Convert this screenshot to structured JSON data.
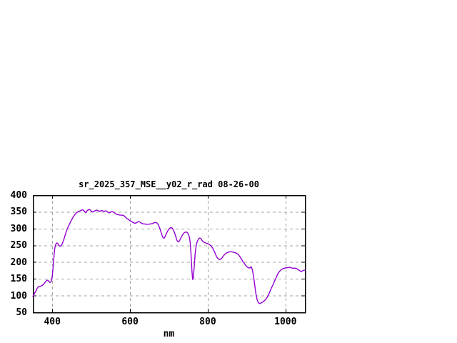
{
  "window": {
    "background": "#ffffff"
  },
  "chart_data": {
    "type": "line",
    "title": "sr_2025_357_MSE__y02_r_rad 08-26-00",
    "xlabel": "nm",
    "ylabel": "",
    "xlim": [
      350,
      1050
    ],
    "ylim": [
      50,
      400
    ],
    "x_ticks": [
      400,
      600,
      800,
      1000
    ],
    "y_ticks": [
      50,
      100,
      150,
      200,
      250,
      300,
      350,
      400
    ],
    "grid": true,
    "legend": false,
    "colors": {
      "line": "#9400d3",
      "grid": "#a0a0a0",
      "border": "#000000",
      "text": "#000000",
      "background": "#ffffff"
    },
    "series": [
      {
        "name": "sr_2025_357_MSE__y02_r_rad",
        "color": "#9400d3",
        "points": [
          [
            350,
            98
          ],
          [
            352,
            101
          ],
          [
            354,
            106
          ],
          [
            356,
            110
          ],
          [
            358,
            114
          ],
          [
            360,
            119
          ],
          [
            362,
            123
          ],
          [
            364,
            126
          ],
          [
            366,
            127
          ],
          [
            368,
            127
          ],
          [
            370,
            128
          ],
          [
            372,
            129
          ],
          [
            374,
            130
          ],
          [
            376,
            132
          ],
          [
            378,
            134
          ],
          [
            380,
            137
          ],
          [
            382,
            140
          ],
          [
            384,
            143
          ],
          [
            386,
            145
          ],
          [
            388,
            146
          ],
          [
            390,
            144
          ],
          [
            392,
            141
          ],
          [
            394,
            139
          ],
          [
            396,
            140
          ],
          [
            398,
            145
          ],
          [
            400,
            158
          ],
          [
            402,
            182
          ],
          [
            404,
            212
          ],
          [
            406,
            238
          ],
          [
            408,
            250
          ],
          [
            410,
            255
          ],
          [
            412,
            257
          ],
          [
            414,
            256
          ],
          [
            416,
            252
          ],
          [
            418,
            249
          ],
          [
            420,
            247
          ],
          [
            422,
            248
          ],
          [
            424,
            251
          ],
          [
            426,
            256
          ],
          [
            428,
            262
          ],
          [
            430,
            268
          ],
          [
            433,
            280
          ],
          [
            436,
            291
          ],
          [
            439,
            300
          ],
          [
            442,
            308
          ],
          [
            445,
            315
          ],
          [
            448,
            322
          ],
          [
            451,
            329
          ],
          [
            454,
            335
          ],
          [
            457,
            340
          ],
          [
            460,
            344
          ],
          [
            463,
            348
          ],
          [
            466,
            350
          ],
          [
            469,
            352
          ],
          [
            472,
            353
          ],
          [
            475,
            355
          ],
          [
            478,
            356
          ],
          [
            481,
            354
          ],
          [
            484,
            350
          ],
          [
            486,
            347
          ],
          [
            488,
            350
          ],
          [
            490,
            354
          ],
          [
            493,
            356
          ],
          [
            496,
            357
          ],
          [
            499,
            354
          ],
          [
            502,
            350
          ],
          [
            505,
            350
          ],
          [
            508,
            352
          ],
          [
            511,
            354
          ],
          [
            514,
            355
          ],
          [
            517,
            354
          ],
          [
            520,
            352
          ],
          [
            523,
            352
          ],
          [
            526,
            354
          ],
          [
            529,
            353
          ],
          [
            532,
            352
          ],
          [
            535,
            352
          ],
          [
            538,
            353
          ],
          [
            541,
            351
          ],
          [
            544,
            348
          ],
          [
            547,
            347
          ],
          [
            550,
            349
          ],
          [
            553,
            351
          ],
          [
            556,
            350
          ],
          [
            559,
            348
          ],
          [
            562,
            345
          ],
          [
            565,
            343
          ],
          [
            568,
            342
          ],
          [
            571,
            341
          ],
          [
            574,
            340
          ],
          [
            577,
            340
          ],
          [
            580,
            340
          ],
          [
            583,
            339
          ],
          [
            586,
            337
          ],
          [
            589,
            333
          ],
          [
            592,
            330
          ],
          [
            595,
            328
          ],
          [
            598,
            325
          ],
          [
            601,
            323
          ],
          [
            604,
            321
          ],
          [
            607,
            319
          ],
          [
            610,
            317
          ],
          [
            613,
            316
          ],
          [
            616,
            317
          ],
          [
            619,
            319
          ],
          [
            622,
            321
          ],
          [
            625,
            320
          ],
          [
            628,
            317
          ],
          [
            631,
            315
          ],
          [
            634,
            314
          ],
          [
            637,
            314
          ],
          [
            640,
            313
          ],
          [
            643,
            313
          ],
          [
            646,
            313
          ],
          [
            649,
            313
          ],
          [
            652,
            314
          ],
          [
            655,
            314
          ],
          [
            658,
            315
          ],
          [
            661,
            317
          ],
          [
            664,
            318
          ],
          [
            667,
            318
          ],
          [
            670,
            316
          ],
          [
            673,
            311
          ],
          [
            676,
            303
          ],
          [
            679,
            292
          ],
          [
            682,
            281
          ],
          [
            685,
            273
          ],
          [
            687,
            271
          ],
          [
            689,
            273
          ],
          [
            691,
            278
          ],
          [
            694,
            286
          ],
          [
            697,
            293
          ],
          [
            700,
            298
          ],
          [
            703,
            302
          ],
          [
            706,
            303
          ],
          [
            709,
            301
          ],
          [
            712,
            295
          ],
          [
            715,
            286
          ],
          [
            718,
            275
          ],
          [
            721,
            264
          ],
          [
            724,
            260
          ],
          [
            727,
            263
          ],
          [
            730,
            270
          ],
          [
            733,
            277
          ],
          [
            736,
            283
          ],
          [
            739,
            287
          ],
          [
            742,
            289
          ],
          [
            745,
            290
          ],
          [
            748,
            287
          ],
          [
            751,
            281
          ],
          [
            753,
            273
          ],
          [
            755,
            258
          ],
          [
            757,
            225
          ],
          [
            759,
            180
          ],
          [
            761,
            148
          ],
          [
            763,
            153
          ],
          [
            765,
            185
          ],
          [
            767,
            218
          ],
          [
            769,
            240
          ],
          [
            771,
            253
          ],
          [
            773,
            261
          ],
          [
            775,
            266
          ],
          [
            777,
            270
          ],
          [
            779,
            272
          ],
          [
            781,
            271
          ],
          [
            783,
            269
          ],
          [
            785,
            265
          ],
          [
            787,
            262
          ],
          [
            789,
            260
          ],
          [
            792,
            258
          ],
          [
            795,
            257
          ],
          [
            798,
            256
          ],
          [
            801,
            254
          ],
          [
            804,
            252
          ],
          [
            807,
            250
          ],
          [
            810,
            246
          ],
          [
            813,
            241
          ],
          [
            816,
            234
          ],
          [
            819,
            226
          ],
          [
            822,
            218
          ],
          [
            825,
            212
          ],
          [
            828,
            209
          ],
          [
            831,
            207
          ],
          [
            834,
            209
          ],
          [
            837,
            213
          ],
          [
            840,
            218
          ],
          [
            843,
            222
          ],
          [
            846,
            225
          ],
          [
            849,
            228
          ],
          [
            852,
            229
          ],
          [
            855,
            230
          ],
          [
            858,
            231
          ],
          [
            861,
            231
          ],
          [
            864,
            230
          ],
          [
            867,
            229
          ],
          [
            870,
            228
          ],
          [
            873,
            227
          ],
          [
            876,
            225
          ],
          [
            879,
            222
          ],
          [
            882,
            217
          ],
          [
            885,
            212
          ],
          [
            888,
            206
          ],
          [
            891,
            200
          ],
          [
            894,
            196
          ],
          [
            897,
            191
          ],
          [
            900,
            187
          ],
          [
            903,
            184
          ],
          [
            906,
            182
          ],
          [
            909,
            183
          ],
          [
            912,
            186
          ],
          [
            915,
            176
          ],
          [
            918,
            156
          ],
          [
            921,
            130
          ],
          [
            924,
            105
          ],
          [
            927,
            88
          ],
          [
            930,
            79
          ],
          [
            933,
            76
          ],
          [
            936,
            77
          ],
          [
            939,
            79
          ],
          [
            942,
            81
          ],
          [
            945,
            84
          ],
          [
            948,
            87
          ],
          [
            951,
            91
          ],
          [
            954,
            97
          ],
          [
            957,
            104
          ],
          [
            960,
            112
          ],
          [
            963,
            120
          ],
          [
            966,
            128
          ],
          [
            969,
            135
          ],
          [
            972,
            143
          ],
          [
            975,
            151
          ],
          [
            978,
            159
          ],
          [
            981,
            166
          ],
          [
            984,
            171
          ],
          [
            987,
            175
          ],
          [
            990,
            178
          ],
          [
            993,
            180
          ],
          [
            996,
            181
          ],
          [
            999,
            182
          ],
          [
            1002,
            183
          ],
          [
            1005,
            183
          ],
          [
            1008,
            184
          ],
          [
            1011,
            184
          ],
          [
            1014,
            183
          ],
          [
            1017,
            182
          ],
          [
            1020,
            181
          ],
          [
            1023,
            182
          ],
          [
            1026,
            181
          ],
          [
            1029,
            180
          ],
          [
            1032,
            178
          ],
          [
            1035,
            176
          ],
          [
            1038,
            173
          ],
          [
            1041,
            172
          ],
          [
            1044,
            174
          ],
          [
            1047,
            175
          ],
          [
            1050,
            176
          ]
        ]
      }
    ]
  }
}
